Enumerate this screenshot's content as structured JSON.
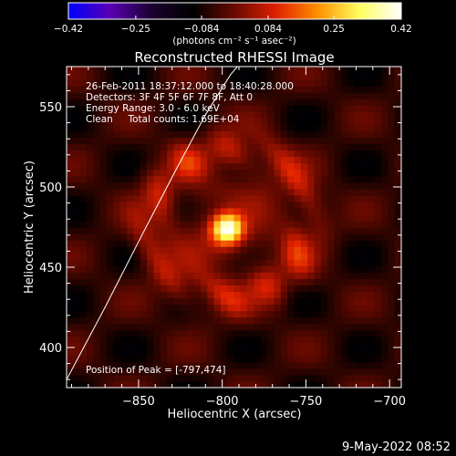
{
  "chart_data": {
    "type": "heatmap",
    "title": "Reconstructed RHESSI Image",
    "xlabel": "Heliocentric X (arcsec)",
    "ylabel": "Heliocentric Y (arcsec)",
    "xlim": [
      -893,
      -693
    ],
    "ylim": [
      375,
      575
    ],
    "xticks": [
      -850,
      -800,
      -750,
      -700
    ],
    "yticks": [
      400,
      450,
      500,
      550
    ],
    "xtick_labels": [
      "−850",
      "−800",
      "−750",
      "−700"
    ],
    "ytick_labels": [
      "400",
      "450",
      "500",
      "550"
    ],
    "colorbar": {
      "range": [
        -0.42,
        0.42
      ],
      "ticks": [
        -0.42,
        -0.25,
        -0.084,
        0.084,
        0.25,
        0.42
      ],
      "tick_labels": [
        "−0.42",
        "−0.25",
        "−0.084",
        "0.084",
        "0.25",
        "0.42"
      ],
      "unit_label": "(photons cm⁻² s⁻¹ asec⁻²)",
      "colors": [
        "#0000ff",
        "#5a00b5",
        "#1a0030",
        "#000000",
        "#6a0a00",
        "#e02000",
        "#ff9000",
        "#ffff60",
        "#ffffff"
      ]
    },
    "annotations": [
      "26-Feb-2011 18:37:12.000 to 18:40:28.000",
      "Detectors: 3F 4F 5F 6F 7F 8F, Att 0",
      "Energy Range: 3.0 - 6.0 keV",
      "Clean     Total counts: 1.69E+04"
    ],
    "peak_label": "Position of Peak = [-797,474]",
    "peak": {
      "x": -797,
      "y": 474,
      "value": 0.42
    },
    "limb_curve": [
      [
        -893,
        380
      ],
      [
        -870,
        425
      ],
      [
        -848,
        470
      ],
      [
        -828,
        510
      ],
      [
        -810,
        545
      ],
      [
        -795,
        570
      ],
      [
        -791,
        575
      ]
    ],
    "ring_structure": {
      "center_x": -796,
      "center_y": 478,
      "radius_arcsec": 45,
      "peak_level": 0.15
    },
    "background_level": -0.06
  },
  "footer": {
    "date": "9-May-2022 08:52"
  }
}
